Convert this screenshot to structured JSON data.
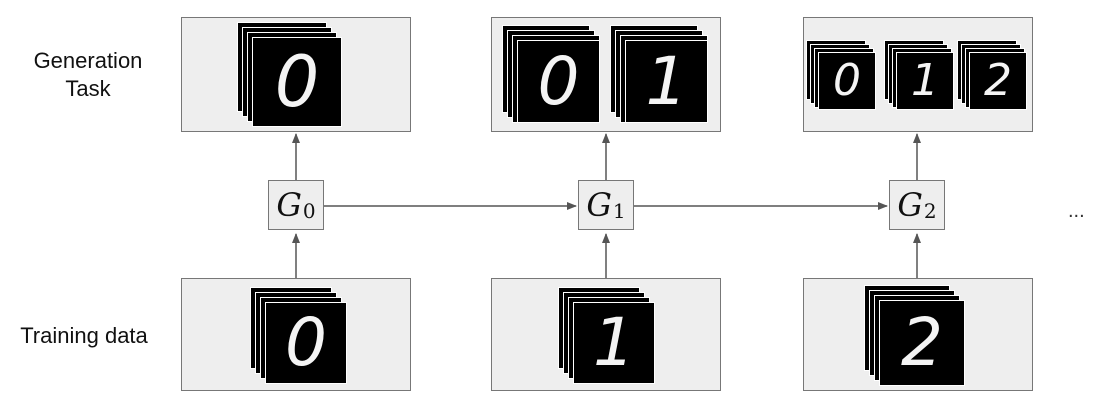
{
  "labels": {
    "generation_task": "Generation Task",
    "training_data": "Training data"
  },
  "generators": [
    {
      "letter": "G",
      "index": "0"
    },
    {
      "letter": "G",
      "index": "1"
    },
    {
      "letter": "G",
      "index": "2"
    }
  ],
  "stages": [
    {
      "training_digit": "0",
      "generated_digits": [
        "0"
      ]
    },
    {
      "training_digit": "1",
      "generated_digits": [
        "0",
        "1"
      ]
    },
    {
      "training_digit": "2",
      "generated_digits": [
        "0",
        "1",
        "2"
      ]
    }
  ],
  "continuation": "..."
}
